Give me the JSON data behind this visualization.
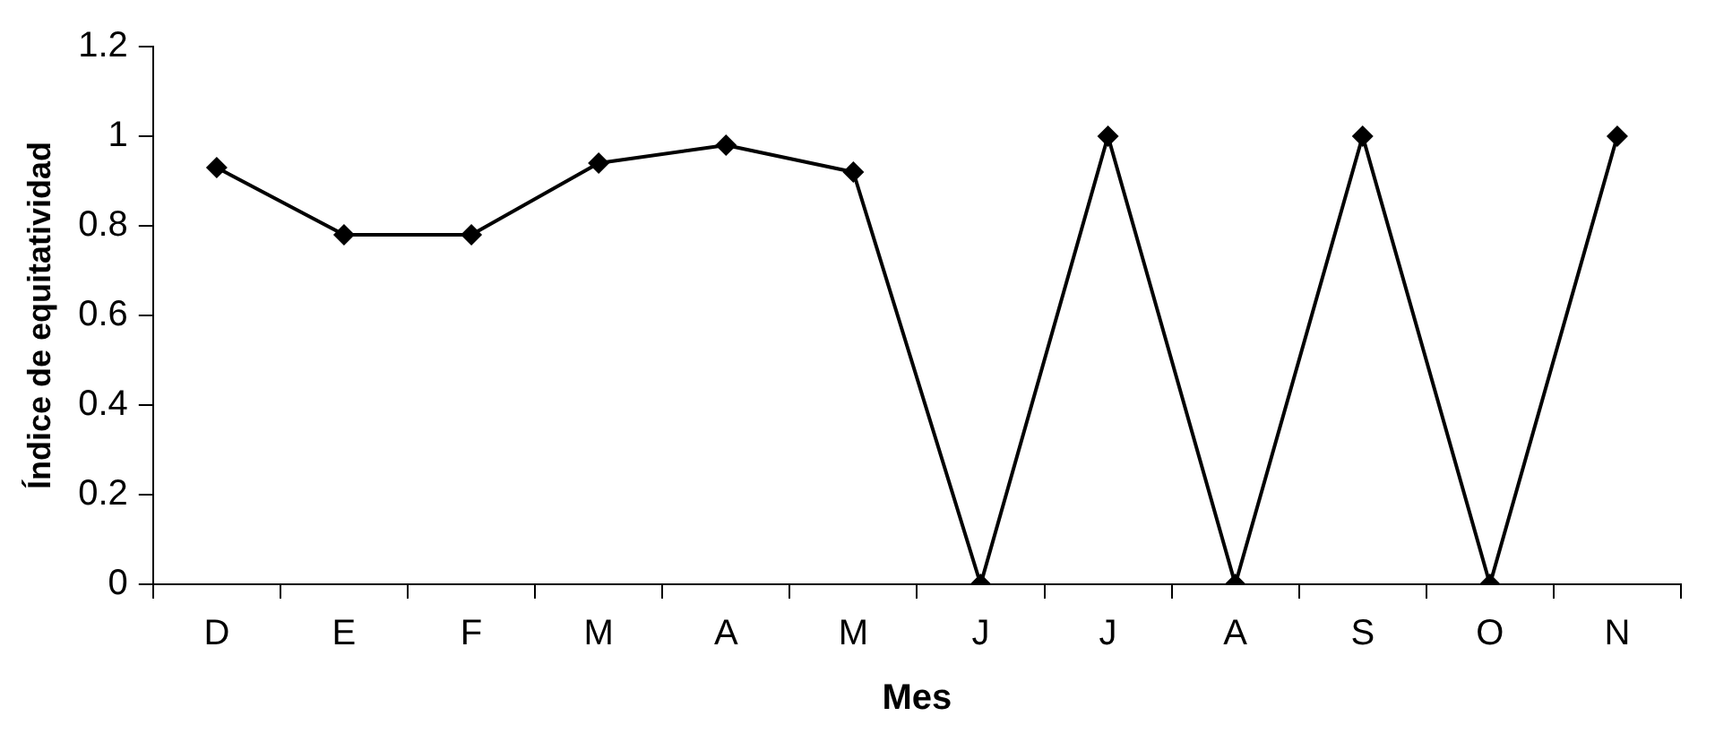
{
  "chart_data": {
    "type": "line",
    "xlabel": "Mes",
    "ylabel": "Índice de equitatividad",
    "categories": [
      "D",
      "E",
      "F",
      "M",
      "A",
      "M",
      "J",
      "J",
      "A",
      "S",
      "O",
      "N"
    ],
    "series": [
      {
        "color": "#000000",
        "values": [
          0.93,
          0.78,
          0.78,
          0.94,
          0.98,
          0.92,
          0,
          1,
          0,
          1,
          0,
          1
        ]
      }
    ],
    "ylim": [
      0,
      1.2
    ],
    "yticks": [
      0,
      0.2,
      0.4,
      0.6,
      0.8,
      1,
      1.2
    ],
    "grid": false,
    "legend": false,
    "marker": "diamond",
    "line_style": "solid"
  }
}
